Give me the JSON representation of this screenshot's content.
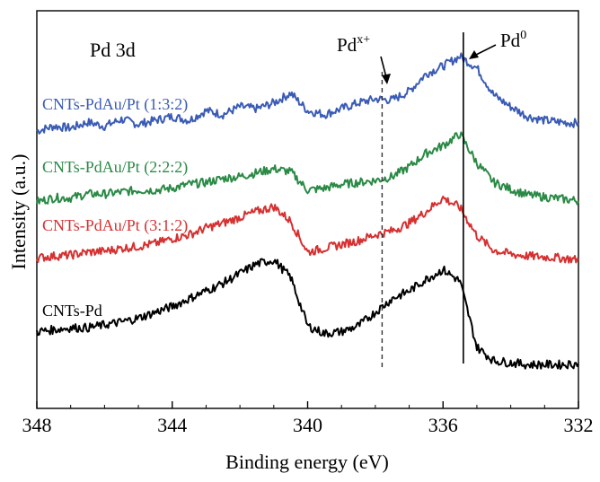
{
  "chart_data": {
    "type": "line",
    "title": "",
    "panel_label": "Pd 3d",
    "xlabel": "Binding energy (eV)",
    "ylabel": "Intensity (a.u.)",
    "xlim": [
      348,
      332
    ],
    "x_reversed": true,
    "y_ticks_shown": false,
    "grid": false,
    "legend": "inline labels above each curve",
    "x_ticks": [
      "348",
      "344",
      "340",
      "336",
      "332"
    ],
    "x_tick_values": [
      348,
      344,
      340,
      336,
      332
    ],
    "annotations": [
      {
        "text": "Pd",
        "superscript": "x+",
        "x": 337.8,
        "line_style": "dashed"
      },
      {
        "text": "Pd",
        "superscript": "0",
        "x": 335.4,
        "line_style": "solid"
      }
    ],
    "series": [
      {
        "name": "CNTs-PdAu/Pt (1:3:2)",
        "color": "#3a5bb5",
        "x": [
          348.0,
          347.5,
          347.0,
          346.5,
          346.0,
          345.5,
          345.0,
          344.5,
          344.0,
          343.5,
          343.0,
          342.5,
          342.0,
          341.5,
          341.0,
          340.5,
          340.0,
          339.5,
          339.0,
          338.5,
          338.0,
          337.5,
          337.0,
          336.5,
          336.0,
          335.5,
          335.0,
          334.5,
          334.0,
          333.5,
          333.0,
          332.5,
          332.0
        ],
        "y": [
          2.63,
          2.68,
          2.66,
          2.72,
          2.68,
          2.75,
          2.7,
          2.74,
          2.78,
          2.74,
          2.84,
          2.8,
          2.88,
          2.86,
          2.92,
          3.02,
          2.84,
          2.8,
          2.86,
          2.92,
          2.96,
          2.95,
          3.04,
          3.22,
          3.3,
          3.4,
          3.28,
          3.0,
          2.88,
          2.78,
          2.74,
          2.72,
          2.71
        ]
      },
      {
        "name": "CNTs-PdAu/Pt (2:2:2)",
        "color": "#2a8a45",
        "x": [
          348.0,
          347.5,
          347.0,
          346.5,
          346.0,
          345.5,
          345.0,
          344.5,
          344.0,
          343.5,
          343.0,
          342.5,
          342.0,
          341.5,
          341.0,
          340.5,
          340.0,
          339.5,
          339.0,
          338.5,
          338.0,
          337.5,
          337.0,
          336.5,
          336.0,
          335.5,
          335.0,
          334.5,
          334.0,
          333.5,
          333.0,
          332.5,
          332.0
        ],
        "y": [
          1.9,
          1.94,
          1.94,
          1.98,
          1.98,
          2.0,
          2.02,
          2.02,
          2.04,
          2.08,
          2.1,
          2.14,
          2.16,
          2.2,
          2.24,
          2.21,
          2.02,
          2.04,
          2.08,
          2.1,
          2.12,
          2.16,
          2.26,
          2.4,
          2.48,
          2.6,
          2.3,
          2.1,
          2.03,
          1.97,
          1.95,
          1.93,
          1.91
        ]
      },
      {
        "name": "CNTs-PdAu/Pt (3:1:2)",
        "color": "#d63030",
        "x": [
          348.0,
          347.5,
          347.0,
          346.5,
          346.0,
          345.5,
          345.0,
          344.5,
          344.0,
          343.5,
          343.0,
          342.5,
          342.0,
          341.5,
          341.0,
          340.5,
          340.0,
          339.5,
          339.0,
          338.5,
          338.0,
          337.5,
          337.0,
          336.5,
          336.0,
          335.5,
          335.0,
          334.5,
          334.0,
          333.5,
          333.0,
          332.5,
          332.0
        ],
        "y": [
          1.32,
          1.34,
          1.35,
          1.38,
          1.39,
          1.42,
          1.44,
          1.47,
          1.52,
          1.56,
          1.63,
          1.68,
          1.74,
          1.8,
          1.85,
          1.7,
          1.38,
          1.42,
          1.46,
          1.5,
          1.56,
          1.6,
          1.68,
          1.8,
          1.94,
          1.84,
          1.55,
          1.4,
          1.36,
          1.34,
          1.33,
          1.32,
          1.3
        ]
      },
      {
        "name": "CNTs-Pd",
        "color": "#000000",
        "x": [
          348.0,
          347.5,
          347.0,
          346.5,
          346.0,
          345.5,
          345.0,
          344.5,
          344.0,
          343.5,
          343.0,
          342.5,
          342.0,
          341.5,
          341.0,
          340.5,
          340.0,
          339.5,
          339.0,
          338.5,
          338.0,
          337.5,
          337.0,
          336.5,
          336.0,
          335.5,
          335.0,
          334.5,
          334.0,
          333.5,
          333.0,
          332.5,
          332.0
        ],
        "y": [
          0.56,
          0.58,
          0.6,
          0.6,
          0.63,
          0.66,
          0.7,
          0.76,
          0.82,
          0.9,
          0.98,
          1.06,
          1.16,
          1.26,
          1.3,
          1.12,
          0.62,
          0.54,
          0.56,
          0.62,
          0.76,
          0.9,
          0.98,
          1.1,
          1.2,
          1.08,
          0.4,
          0.26,
          0.24,
          0.22,
          0.22,
          0.22,
          0.23
        ]
      }
    ]
  }
}
